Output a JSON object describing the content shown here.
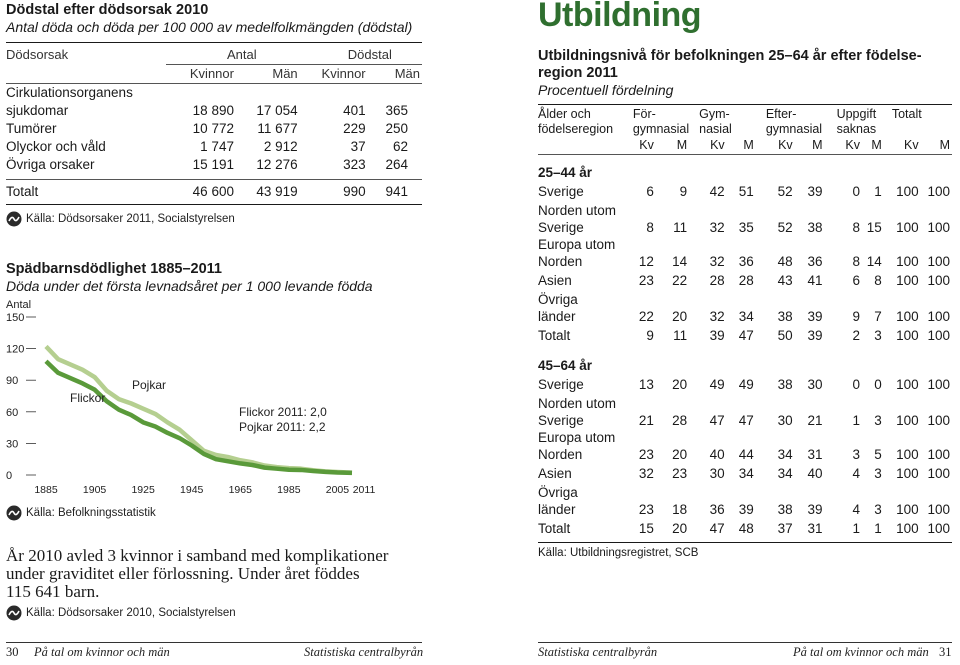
{
  "deaths": {
    "title": "Dödstal efter dödsorsak 2010",
    "subtitle": "Antal döda och döda per 100 000 av medelfolkmängden (dödstal)",
    "col_cause": "Dödsorsak",
    "col_antal": "Antal",
    "col_dodstal": "Dödstal",
    "kvinnor": "Kvinnor",
    "man": "Män",
    "rows": [
      {
        "label1": "Cirkulationsorganens",
        "label2": "sjukdomar",
        "values": [
          "18 890",
          "17 054",
          "401",
          "365"
        ]
      },
      {
        "label1": "Tumörer",
        "values": [
          "10 772",
          "11 677",
          "229",
          "250"
        ]
      },
      {
        "label1": "Olyckor och våld",
        "values": [
          "1 747",
          "2 912",
          "37",
          "62"
        ]
      },
      {
        "label1": "Övriga orsaker",
        "values": [
          "15 191",
          "12 276",
          "323",
          "264"
        ]
      }
    ],
    "total": {
      "label": "Totalt",
      "values": [
        "46 600",
        "43 919",
        "990",
        "941"
      ]
    },
    "source": "Källa: Dödsorsaker 2011, Socialstyrelsen"
  },
  "infant": {
    "title": "Spädbarnsdödlighet 1885–2011",
    "subtitle": "Döda under det första levnadsåret per 1 000 levande födda",
    "ylabel": "Antal",
    "label_flickor": "Flickor",
    "label_pojkar": "Pojkar",
    "annot1": "Flickor 2011: 2,0",
    "annot2": "Pojkar 2011: 2,2",
    "source": "Källa: Befolkningsstatistik"
  },
  "chart_data": {
    "type": "line",
    "title": "Spädbarnsdödlighet 1885–2011",
    "ylabel": "Antal",
    "ylim": [
      0,
      150
    ],
    "yticks": [
      "0",
      "30",
      "60",
      "90",
      "120",
      "150"
    ],
    "xticks": [
      "1885",
      "1905",
      "1925",
      "1945",
      "1965",
      "1985",
      "2005",
      "2011"
    ],
    "series": [
      {
        "name": "Pojkar",
        "color": "#b5cf90",
        "x": [
          1885,
          1890,
          1895,
          1900,
          1905,
          1910,
          1915,
          1920,
          1925,
          1930,
          1935,
          1940,
          1945,
          1950,
          1955,
          1960,
          1965,
          1970,
          1975,
          1980,
          1985,
          1990,
          1995,
          2000,
          2005,
          2011
        ],
        "y": [
          122,
          110,
          105,
          100,
          93,
          80,
          72,
          68,
          63,
          58,
          50,
          43,
          33,
          23,
          19,
          17,
          14,
          12,
          9,
          7.5,
          6.5,
          6,
          4.5,
          3.5,
          2.8,
          2.2
        ]
      },
      {
        "name": "Flickor",
        "color": "#5a9a3a",
        "x": [
          1885,
          1890,
          1895,
          1900,
          1905,
          1910,
          1915,
          1920,
          1925,
          1930,
          1935,
          1940,
          1945,
          1950,
          1955,
          1960,
          1965,
          1970,
          1975,
          1980,
          1985,
          1990,
          1995,
          2000,
          2005,
          2011
        ],
        "y": [
          108,
          97,
          92,
          87,
          81,
          70,
          62,
          57,
          50,
          46,
          40,
          35,
          28,
          20,
          15,
          13,
          11,
          9.5,
          7,
          6,
          5,
          4.8,
          3.8,
          3,
          2.4,
          2.0
        ]
      }
    ]
  },
  "maternal": {
    "line1": "År 2010 avled 3 kvinnor i samband med komplikationer",
    "line2": "under graviditet eller förlossning. Under året föddes",
    "line3": "115 641 barn.",
    "source": "Källa: Dödsorsaker 2010, Socialstyrelsen"
  },
  "education": {
    "heading": "Utbildning",
    "title1": "Utbildningsnivå för befolkningen 25–64 år efter födelse-",
    "title2": "region 2011",
    "subtitle": "Procentuell fördelning",
    "h_region1": "Ålder och",
    "h_region2": "födelseregion",
    "h_for1": "För-",
    "h_for2": "gymnasial",
    "h_gym1": "Gym-",
    "h_gym2": "nasial",
    "h_eft1": "Efter-",
    "h_eft2": "gymnasial",
    "h_upp1": "Uppgift",
    "h_upp2": "saknas",
    "h_tot": "Totalt",
    "kv": "Kv",
    "m": "M",
    "groups": [
      {
        "label": "25–44 år",
        "rows": [
          {
            "l1": "",
            "l2": "Sverige",
            "v": [
              "6",
              "9",
              "42",
              "51",
              "52",
              "39",
              "0",
              "1",
              "100",
              "100"
            ]
          },
          {
            "l1": "Norden utom",
            "l2": "Sverige",
            "v": [
              "8",
              "11",
              "32",
              "35",
              "52",
              "38",
              "8",
              "15",
              "100",
              "100"
            ]
          },
          {
            "l1": "Europa utom",
            "l2": "Norden",
            "v": [
              "12",
              "14",
              "32",
              "36",
              "48",
              "36",
              "8",
              "14",
              "100",
              "100"
            ]
          },
          {
            "l1": "",
            "l2": "Asien",
            "v": [
              "23",
              "22",
              "28",
              "28",
              "43",
              "41",
              "6",
              "8",
              "100",
              "100"
            ]
          },
          {
            "l1": "Övriga",
            "l2": "länder",
            "v": [
              "22",
              "20",
              "32",
              "34",
              "38",
              "39",
              "9",
              "7",
              "100",
              "100"
            ]
          },
          {
            "l1": "",
            "l2": "Totalt",
            "v": [
              "9",
              "11",
              "39",
              "47",
              "50",
              "39",
              "2",
              "3",
              "100",
              "100"
            ]
          }
        ]
      },
      {
        "label": "45–64 år",
        "rows": [
          {
            "l1": "",
            "l2": "Sverige",
            "v": [
              "13",
              "20",
              "49",
              "49",
              "38",
              "30",
              "0",
              "0",
              "100",
              "100"
            ]
          },
          {
            "l1": "Norden utom",
            "l2": "Sverige",
            "v": [
              "21",
              "28",
              "47",
              "47",
              "30",
              "21",
              "1",
              "3",
              "100",
              "100"
            ]
          },
          {
            "l1": "Europa utom",
            "l2": "Norden",
            "v": [
              "23",
              "20",
              "40",
              "44",
              "34",
              "31",
              "3",
              "5",
              "100",
              "100"
            ]
          },
          {
            "l1": "",
            "l2": "Asien",
            "v": [
              "32",
              "23",
              "30",
              "34",
              "34",
              "40",
              "4",
              "3",
              "100",
              "100"
            ]
          },
          {
            "l1": "Övriga",
            "l2": "länder",
            "v": [
              "23",
              "18",
              "36",
              "39",
              "38",
              "39",
              "4",
              "3",
              "100",
              "100"
            ]
          },
          {
            "l1": "",
            "l2": "Totalt",
            "v": [
              "15",
              "20",
              "47",
              "48",
              "37",
              "31",
              "1",
              "1",
              "100",
              "100"
            ]
          }
        ]
      }
    ],
    "source": "Källa: Utbildningsregistret, SCB"
  },
  "footer": {
    "left_page": "30",
    "left_title": "På tal om kvinnor och män",
    "left_pub": "Statistiska centralbyrån",
    "right_pub": "Statistiska centralbyrån",
    "right_title": "På tal om kvinnor och män",
    "right_page": "31"
  }
}
